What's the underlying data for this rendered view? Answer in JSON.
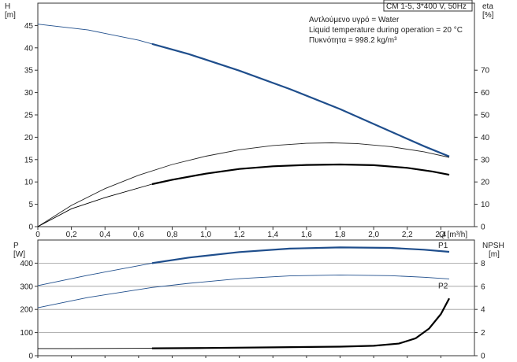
{
  "chart_data": [
    {
      "type": "line",
      "title": "CM 1-5, 3*400 V, 50Hz",
      "info_lines": [
        "Αντλούμενο υγρό = Water",
        "Liquid temperature during operation = 20 °C",
        "Πυκνότητα = 998.2 kg/m³"
      ],
      "xlabel": "Q [m³/h]",
      "xlim": [
        0,
        2.6
      ],
      "x_ticks": [
        0,
        0.2,
        0.4,
        0.6,
        0.8,
        1.0,
        1.2,
        1.4,
        1.6,
        1.8,
        2.0,
        2.2,
        2.4
      ],
      "x_tick_labels": [
        "0",
        "0,2",
        "0,4",
        "0,6",
        "0,8",
        "1,0",
        "1,2",
        "1,4",
        "1,6",
        "1,8",
        "2,0",
        "2,2",
        "2,4"
      ],
      "y_left": {
        "label_top": "H",
        "label_unit": "[m]",
        "ylim": [
          0,
          50
        ],
        "ticks": [
          0,
          5,
          10,
          15,
          20,
          25,
          30,
          35,
          40,
          45
        ]
      },
      "y_right": {
        "label_top": "eta",
        "label_unit": "[%]",
        "ylim": [
          0,
          100
        ],
        "ticks": [
          0,
          10,
          20,
          30,
          40,
          50,
          60,
          70
        ]
      },
      "grid": false,
      "series": [
        {
          "axis": "left",
          "color": "#1f4e8c",
          "x": [
            0,
            0.3,
            0.6,
            0.9,
            1.2,
            1.5,
            1.8,
            2.1,
            2.3,
            2.45
          ],
          "y": [
            45.3,
            44.0,
            41.7,
            38.6,
            34.9,
            30.8,
            26.3,
            21.3,
            18.0,
            15.7
          ],
          "bold_from": 0.68
        },
        {
          "axis": "right",
          "color": "#222222",
          "x": [
            0,
            0.2,
            0.4,
            0.6,
            0.8,
            1.0,
            1.2,
            1.4,
            1.6,
            1.75,
            1.9,
            2.1,
            2.3,
            2.45
          ],
          "y": [
            0,
            9.5,
            17.0,
            23.0,
            27.8,
            31.5,
            34.4,
            36.3,
            37.3,
            37.5,
            37.2,
            35.8,
            33.5,
            31.0
          ],
          "bold_from": 99
        },
        {
          "axis": "right",
          "color": "#000000",
          "x": [
            0,
            0.2,
            0.4,
            0.68,
            0.8,
            1.0,
            1.2,
            1.4,
            1.6,
            1.8,
            2.0,
            2.2,
            2.35,
            2.45
          ],
          "y": [
            0,
            8.0,
            13.0,
            19.0,
            21.0,
            23.7,
            25.8,
            27.0,
            27.6,
            27.8,
            27.5,
            26.3,
            24.7,
            23.2
          ],
          "bold_from": 0.68
        }
      ]
    },
    {
      "type": "line",
      "xlim": [
        0,
        2.6
      ],
      "y_left": {
        "label_top": "P",
        "label_unit": "[W]",
        "ylim": [
          0,
          500
        ],
        "ticks": [
          0,
          100,
          200,
          300,
          400
        ]
      },
      "y_right": {
        "label_top": "NPSH",
        "label_unit": "[m]",
        "ylim": [
          0,
          10
        ],
        "ticks": [
          0,
          2,
          4,
          6,
          8
        ]
      },
      "grid": true,
      "series": [
        {
          "name": "P1",
          "axis": "left",
          "color": "#1f4e8c",
          "x": [
            0,
            0.3,
            0.68,
            0.9,
            1.2,
            1.5,
            1.8,
            2.1,
            2.3,
            2.45
          ],
          "y": [
            303,
            348,
            400,
            424,
            448,
            463,
            468,
            466,
            458,
            449
          ],
          "bold_from": 0.68
        },
        {
          "name": "P2",
          "axis": "left",
          "color": "#1f4e8c",
          "x": [
            0,
            0.3,
            0.68,
            0.9,
            1.2,
            1.5,
            1.8,
            2.1,
            2.3,
            2.45
          ],
          "y": [
            207,
            252,
            295,
            313,
            333,
            345,
            349,
            346,
            339,
            332
          ],
          "bold_from": 99
        },
        {
          "name": "",
          "axis": "right",
          "color": "#000000",
          "x": [
            0,
            0.2,
            0.68,
            1.0,
            1.4,
            1.8,
            2.0,
            2.15,
            2.25,
            2.33,
            2.4,
            2.45
          ],
          "y": [
            0.62,
            0.62,
            0.64,
            0.67,
            0.72,
            0.78,
            0.86,
            1.05,
            1.5,
            2.35,
            3.6,
            4.95
          ],
          "bold_from": 0.68
        }
      ]
    }
  ]
}
